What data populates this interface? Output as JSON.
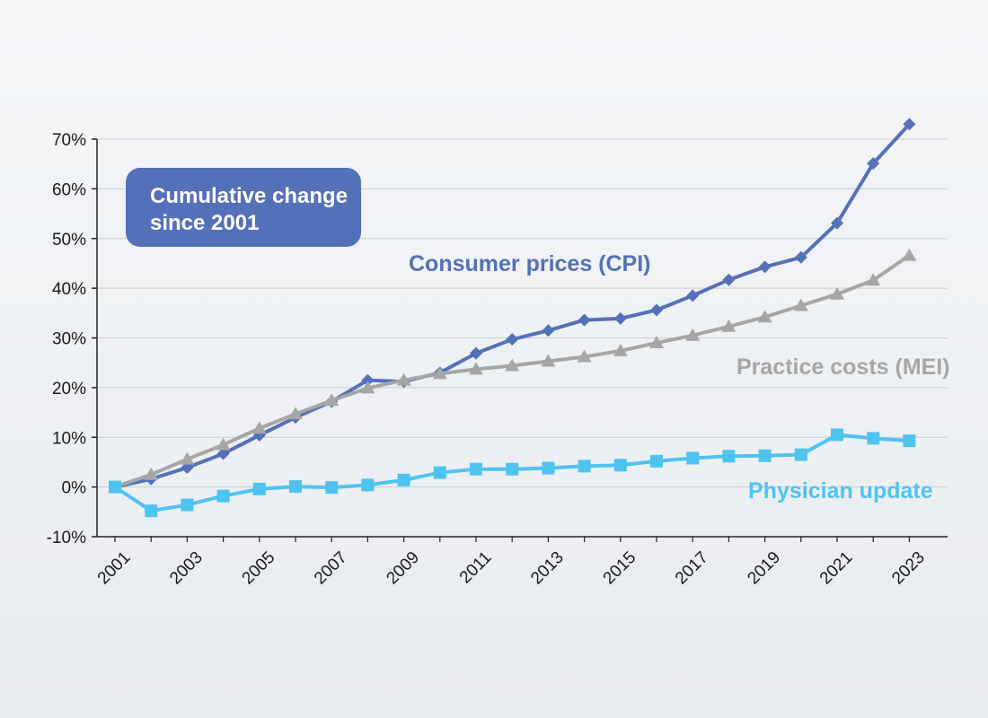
{
  "chart_data": {
    "type": "line",
    "annotation": [
      "Cumulative change",
      "since 2001"
    ],
    "x": [
      2001,
      2002,
      2003,
      2004,
      2005,
      2006,
      2007,
      2008,
      2009,
      2010,
      2011,
      2012,
      2013,
      2014,
      2015,
      2016,
      2017,
      2018,
      2019,
      2020,
      2021,
      2022,
      2023
    ],
    "xticks": [
      "2001",
      "2003",
      "2005",
      "2007",
      "2009",
      "2011",
      "2013",
      "2015",
      "2017",
      "2019",
      "2021",
      "2023"
    ],
    "ylim": [
      -10,
      70
    ],
    "yticks": [
      "-10%",
      "0%",
      "10%",
      "20%",
      "30%",
      "40%",
      "50%",
      "60%",
      "70%"
    ],
    "grid": true,
    "series": [
      {
        "name": "Consumer prices (CPI)",
        "color": "#5470b8",
        "marker": "diamond",
        "values": [
          0,
          1.6,
          3.9,
          6.7,
          10.4,
          14.0,
          17.2,
          21.5,
          21.2,
          23.0,
          26.9,
          29.7,
          31.5,
          33.6,
          33.9,
          35.6,
          38.5,
          41.7,
          44.3,
          46.2,
          53.1,
          65.1,
          73.0
        ]
      },
      {
        "name": "Practice costs (MEI)",
        "color": "#a6a6a6",
        "marker": "triangle",
        "values": [
          0,
          2.5,
          5.6,
          8.5,
          11.8,
          14.7,
          17.4,
          19.9,
          21.5,
          22.8,
          23.7,
          24.4,
          25.3,
          26.2,
          27.4,
          29.0,
          30.5,
          32.3,
          34.2,
          36.5,
          38.8,
          41.6,
          46.6
        ]
      },
      {
        "name": "Physician update",
        "color": "#4fc3ef",
        "marker": "square",
        "values": [
          0,
          -4.8,
          -3.6,
          -1.8,
          -0.4,
          0.1,
          -0.1,
          0.4,
          1.4,
          2.9,
          3.6,
          3.6,
          3.8,
          4.2,
          4.4,
          5.2,
          5.8,
          6.2,
          6.3,
          6.5,
          10.5,
          9.8,
          9.3
        ]
      }
    ]
  }
}
